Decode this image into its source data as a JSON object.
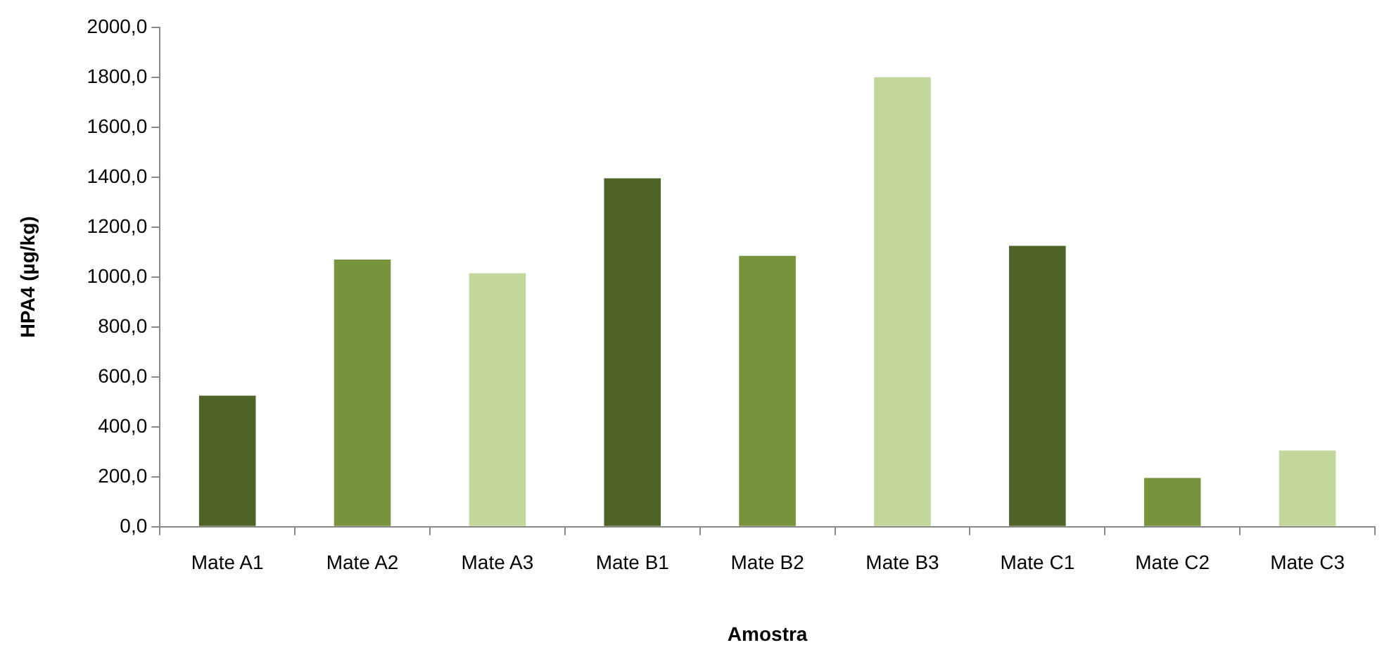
{
  "chart_data": {
    "type": "bar",
    "xlabel": "Amostra",
    "ylabel": "HPA4 (µg/kg)",
    "categories": [
      "Mate A1",
      "Mate A2",
      "Mate A3",
      "Mate B1",
      "Mate B2",
      "Mate B3",
      "Mate C1",
      "Mate C2",
      "Mate C3"
    ],
    "values": [
      525,
      1070,
      1015,
      1395,
      1085,
      1800,
      1125,
      195,
      305
    ],
    "colors": [
      "#4f6228",
      "#77933c",
      "#c3d69b",
      "#4f6228",
      "#77933c",
      "#c3d69b",
      "#4f6228",
      "#77933c",
      "#c3d69b"
    ],
    "ylim": [
      0,
      2000
    ],
    "yticks": [
      {
        "value": 0,
        "label": "0,0"
      },
      {
        "value": 200,
        "label": "200,0"
      },
      {
        "value": 400,
        "label": "400,0"
      },
      {
        "value": 600,
        "label": "600,0"
      },
      {
        "value": 800,
        "label": "800,0"
      },
      {
        "value": 1000,
        "label": "1000,0"
      },
      {
        "value": 1200,
        "label": "1200,0"
      },
      {
        "value": 1400,
        "label": "1400,0"
      },
      {
        "value": 1600,
        "label": "1600,0"
      },
      {
        "value": 1800,
        "label": "1800,0"
      },
      {
        "value": 2000,
        "label": "2000,0"
      }
    ],
    "grid": false,
    "legend": false
  }
}
